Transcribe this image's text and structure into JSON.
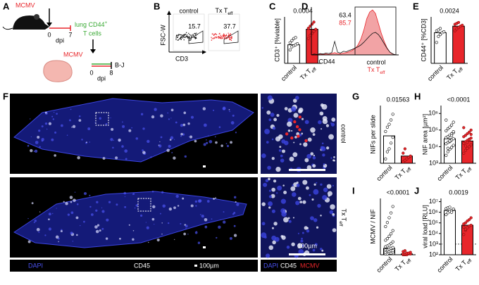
{
  "panel_labels": [
    "A",
    "B",
    "C",
    "D",
    "E",
    "F",
    "G",
    "H",
    "I",
    "J"
  ],
  "panel_a": {
    "infection": "MCMV",
    "day_start": "0",
    "day_end": "7",
    "dpi": "dpi",
    "cells_line1": "lung CD44",
    "cells_sup": "+",
    "cells_line2": "T cells",
    "infection2": "MCMV",
    "day_start2": "0",
    "dpi2": "dpi",
    "day_end2": "8",
    "readout": "B-J"
  },
  "panel_b": {
    "y_label": "FSC-W",
    "x_label": "CD3",
    "plots": [
      {
        "title": "control",
        "gate_value": 15.7
      },
      {
        "title": "Tx T",
        "title_sub": "eff",
        "gate_value": 37.7
      }
    ]
  },
  "panel_d": {
    "x_label": "CD44",
    "gate_control": 63.4,
    "gate_tx": 85.7,
    "legend": [
      "control",
      "Tx T"
    ],
    "legend_sub": "eff",
    "ylim": [
      0,
      100
    ],
    "control_counts": [
      0,
      2,
      1,
      3,
      2,
      4,
      3,
      5,
      30,
      6,
      4,
      8,
      7,
      10,
      12,
      15,
      18,
      22,
      28,
      35,
      42,
      48,
      50,
      45,
      36,
      25,
      14,
      6,
      2,
      0
    ],
    "tx_counts": [
      0,
      1,
      0,
      2,
      1,
      2,
      1,
      3,
      5,
      3,
      2,
      4,
      5,
      7,
      10,
      14,
      22,
      35,
      55,
      80,
      95,
      100,
      92,
      70,
      48,
      30,
      15,
      6,
      2,
      0
    ]
  },
  "panel_f": {
    "row_labels": [
      "control",
      "Tx T"
    ],
    "row_sub": "eff",
    "crop_scale": "100µm",
    "legend_dapi": "DAPI",
    "legend_cd45": "CD45",
    "legend_scale": "100µm",
    "legend_dapi2": "DAPI",
    "legend_cd45_2": "CD45",
    "legend_mcmv": "MCMV"
  },
  "chart_data": [
    {
      "type": "bar",
      "y_label": "CD3⁺ [%viable]",
      "p_label": "0.0004",
      "categories": [
        "control",
        "Tx T"
      ],
      "category_sub": "eff",
      "colors": [
        "#ffffff",
        "#e8262b"
      ],
      "ylim": [
        0,
        45
      ],
      "values": [
        18,
        33
      ],
      "points": [
        [
          13,
          16,
          17,
          18,
          19,
          20,
          22,
          24,
          25
        ],
        [
          24,
          27,
          29,
          31,
          33,
          34,
          36,
          38,
          40
        ]
      ]
    },
    {
      "type": "bar",
      "y_label": "CD44⁺ [%CD3]",
      "p_label": "0.0024",
      "categories": [
        "control",
        "Tx T"
      ],
      "category_sub": "eff",
      "colors": [
        "#ffffff",
        "#e8262b"
      ],
      "ylim": [
        0,
        100
      ],
      "values": [
        66,
        80
      ],
      "points": [
        [
          45,
          58,
          62,
          66,
          68,
          70,
          72,
          75
        ],
        [
          70,
          74,
          77,
          80,
          82,
          84,
          86,
          88
        ]
      ]
    },
    {
      "type": "bar",
      "y_label": "NIFs per slide",
      "p_label": "0.01563",
      "categories": [
        "control",
        "Tx T"
      ],
      "category_sub": "eff",
      "colors": [
        "#ffffff",
        "#e8262b"
      ],
      "ylim": [
        0,
        40
      ],
      "values": [
        19,
        5
      ],
      "points": [
        [
          3,
          8,
          10,
          14,
          18,
          22,
          25,
          27,
          30,
          34
        ],
        [
          1,
          2,
          3,
          4,
          5,
          7,
          10
        ]
      ]
    },
    {
      "type": "bar",
      "log": true,
      "y_label": "NIF area [µm²]",
      "p_label": "<0.0001",
      "categories": [
        "control",
        "Tx T"
      ],
      "category_sub": "eff",
      "colors": [
        "#ffffff",
        "#e8262b"
      ],
      "ylim": [
        1000,
        3000000
      ],
      "yticks": [
        {
          "value": 1000,
          "label": "10³"
        },
        {
          "value": 10000,
          "label": "10⁴"
        },
        {
          "value": 100000,
          "label": "10⁵"
        },
        {
          "value": 1000000,
          "label": "10⁶"
        }
      ],
      "values": [
        30000,
        22000
      ],
      "points": [
        [
          3000,
          5000,
          7000,
          9000,
          12000,
          15000,
          18000,
          20000,
          25000,
          30000,
          35000,
          40000,
          50000,
          60000,
          70000,
          90000,
          120000,
          150000,
          200000,
          300000,
          400000,
          8000,
          22000,
          45000,
          80000
        ],
        [
          4000,
          6000,
          8000,
          10000,
          13000,
          16000,
          20000,
          24000,
          28000,
          33000,
          40000,
          48000,
          60000,
          75000,
          100000,
          140000,
          11000,
          18000,
          26000,
          55000
        ]
      ]
    },
    {
      "type": "bar",
      "y_label": "MCMV / NIF",
      "p_label": "<0.0001",
      "categories": [
        "control",
        "Tx T"
      ],
      "category_sub": "eff",
      "colors": [
        "#ffffff",
        "#e8262b"
      ],
      "ylim": [
        0,
        70
      ],
      "values": [
        8,
        1
      ],
      "points": [
        [
          1,
          1,
          2,
          2,
          3,
          3,
          4,
          4,
          5,
          5,
          6,
          6,
          7,
          8,
          9,
          10,
          11,
          12,
          14,
          16,
          18,
          20,
          23,
          26,
          30,
          35,
          40,
          46,
          52,
          60
        ],
        [
          0,
          0,
          0,
          1,
          1,
          1,
          1,
          2,
          2,
          3,
          4,
          5
        ]
      ]
    },
    {
      "type": "bar",
      "log": true,
      "y_label": "viral load [RLU]",
      "p_label": "0.0019",
      "categories": [
        "control",
        "Tx T"
      ],
      "category_sub": "eff",
      "colors": [
        "#ffffff",
        "#e8262b"
      ],
      "ylim": [
        100,
        20000000
      ],
      "yticks": [
        {
          "value": 100,
          "label": "10²"
        },
        {
          "value": 1000,
          "label": "10³"
        },
        {
          "value": 10000,
          "label": "10⁴"
        },
        {
          "value": 100000,
          "label": "10⁵"
        },
        {
          "value": 1000000,
          "label": "10⁶"
        },
        {
          "value": 10000000,
          "label": "10⁷"
        }
      ],
      "detection_limit": 1000,
      "values": [
        1500000,
        60000
      ],
      "points": [
        [
          600000,
          900000,
          1200000,
          1500000,
          1800000,
          2200000,
          2600000,
          3000000,
          1000000,
          2000000
        ],
        [
          8000,
          20000,
          35000,
          50000,
          60000,
          80000,
          100000,
          150000,
          200000,
          300000,
          40000,
          25000
        ]
      ]
    }
  ]
}
